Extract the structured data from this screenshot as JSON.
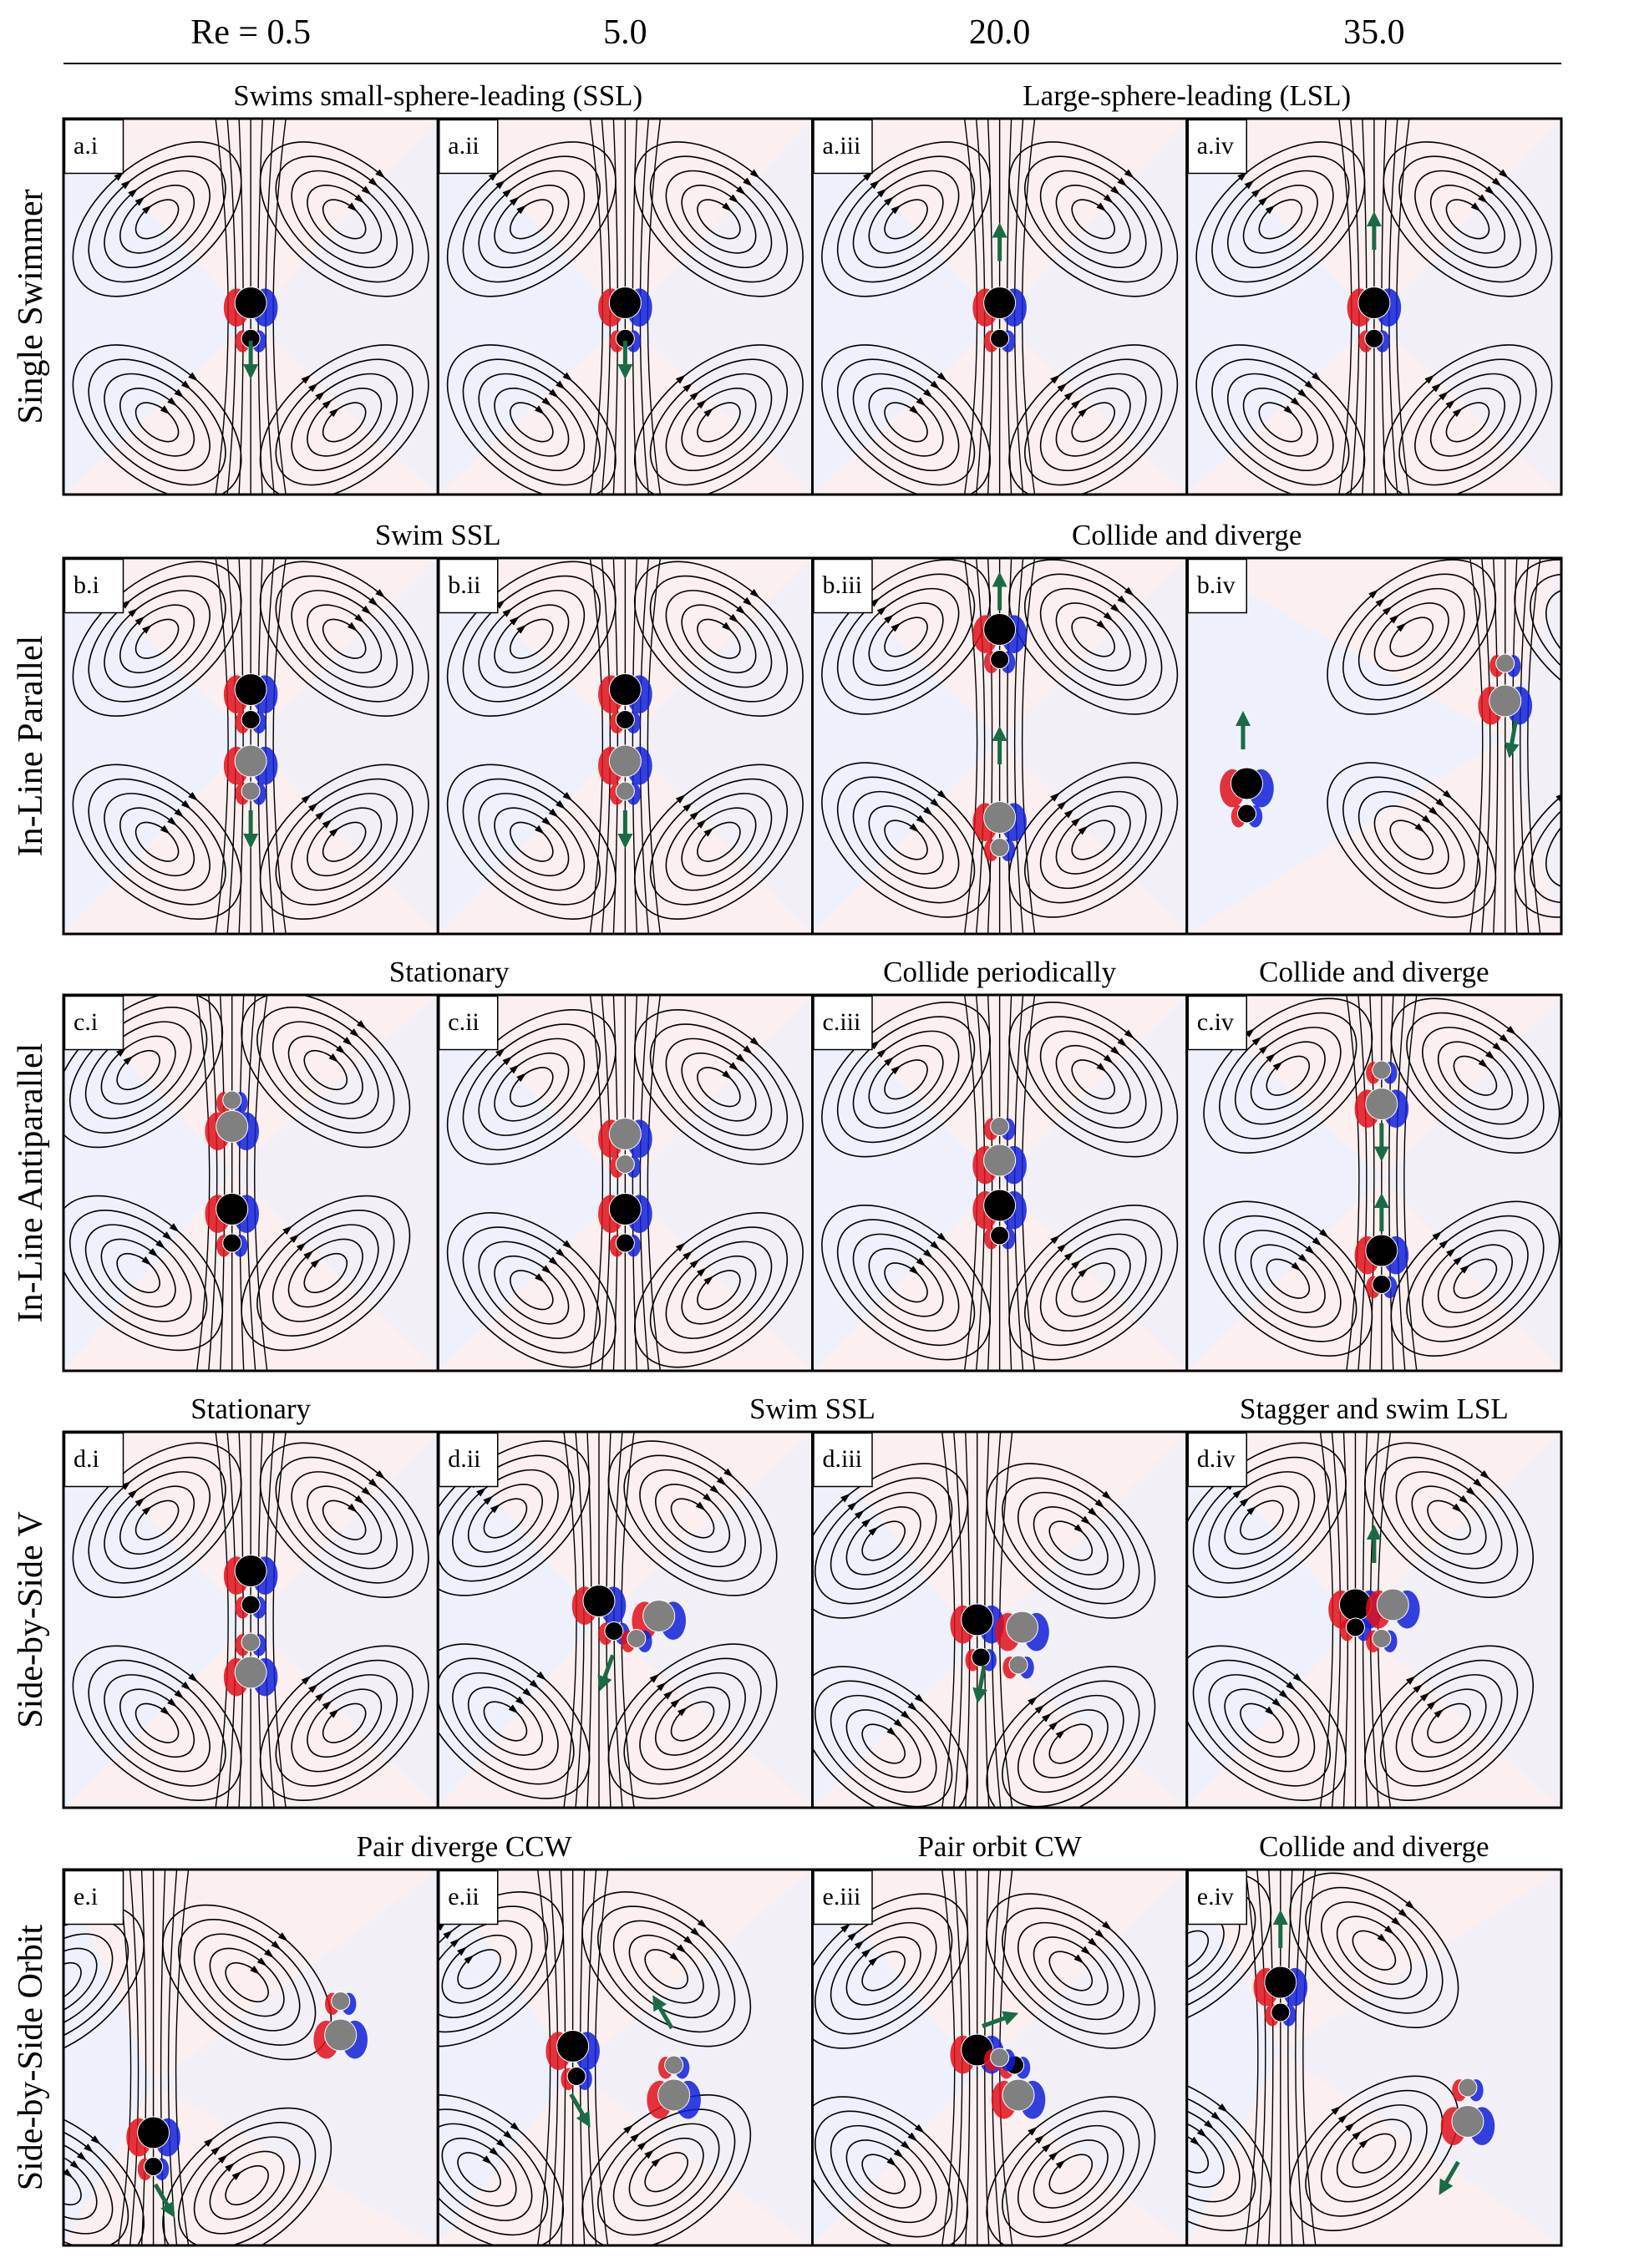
{
  "header": {
    "re_labels": [
      "Re = 0.5",
      "5.0",
      "20.0",
      "35.0"
    ]
  },
  "rows": [
    {
      "label": "Single Swimmer",
      "captions": [
        "Swims small-sphere-leading (SSL)",
        "Large-sphere-leading (LSL)"
      ],
      "panels": [
        "a.i",
        "a.ii",
        "a.iii",
        "a.iv"
      ]
    },
    {
      "label": "In-Line Parallel",
      "captions": [
        "Swim SSL",
        "Collide and diverge"
      ],
      "panels": [
        "b.i",
        "b.ii",
        "b.iii",
        "b.iv"
      ]
    },
    {
      "label": "In-Line Antiparallel",
      "captions": [
        "Stationary",
        "Collide periodically",
        "Collide and diverge"
      ],
      "panels": [
        "c.i",
        "c.ii",
        "c.iii",
        "c.iv"
      ]
    },
    {
      "label": "Side-by-Side V",
      "captions": [
        "Stationary",
        "Swim SSL",
        "Stagger and swim LSL"
      ],
      "panels": [
        "d.i",
        "d.ii",
        "d.iii",
        "d.iv"
      ]
    },
    {
      "label": "Side-by-Side Orbit",
      "captions": [
        "Pair diverge CCW",
        "Pair orbit CW",
        "Collide and diverge"
      ],
      "panels": [
        "e.i",
        "e.ii",
        "e.iii",
        "e.iv"
      ]
    }
  ]
}
